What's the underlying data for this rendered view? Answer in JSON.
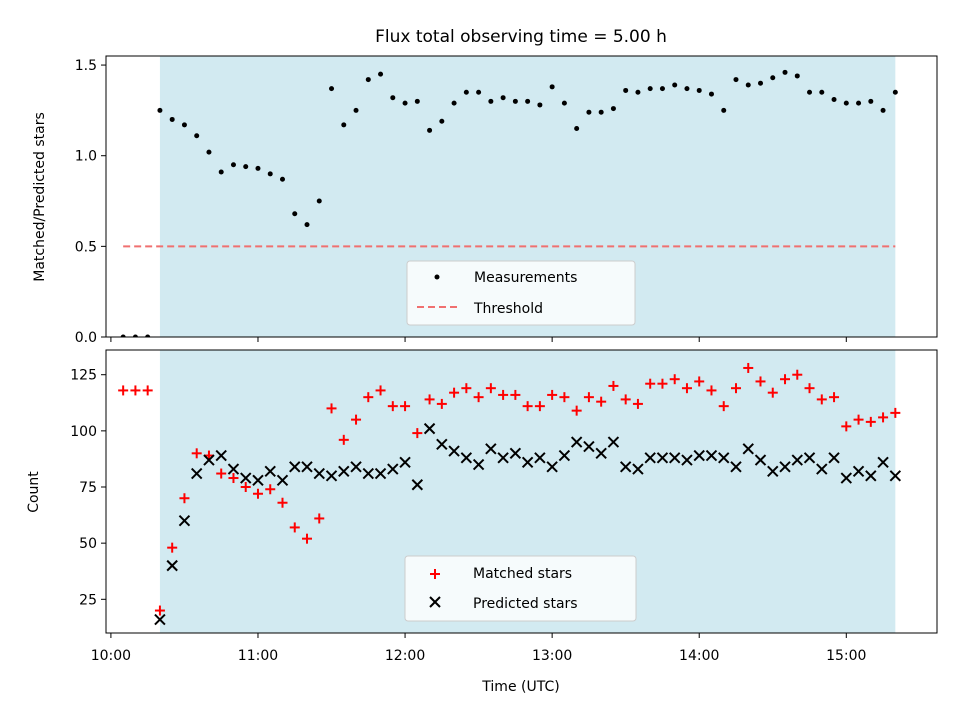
{
  "chart_data": [
    {
      "type": "scatter",
      "title": "Flux total observing time = 5.00 h",
      "ylabel": "Matched/Predicted stars",
      "xlabel": "",
      "xlim": [
        "09:58",
        "15:37"
      ],
      "ylim": [
        0,
        1.55
      ],
      "yticks": [
        0.0,
        0.5,
        1.0,
        1.5
      ],
      "ytick_labels": [
        "0.0",
        "0.5",
        "1.0",
        "1.5"
      ],
      "xticks": [
        "10:00",
        "11:00",
        "12:00",
        "13:00",
        "14:00",
        "15:00"
      ],
      "shaded_region": {
        "from": "10:20",
        "to": "15:20",
        "color": "#add8e6"
      },
      "threshold": {
        "name": "Threshold",
        "y": 0.5,
        "from": "10:05",
        "to": "15:20",
        "color": "#f07070",
        "style": "dashed"
      },
      "legend": {
        "placement": "bottom-center",
        "entries": [
          "Measurements",
          "Threshold"
        ]
      },
      "series": [
        {
          "name": "Measurements",
          "marker": "dot",
          "color": "#000000",
          "x": [
            "10:05",
            "10:10",
            "10:15",
            "10:20",
            "10:25",
            "10:30",
            "10:35",
            "10:40",
            "10:45",
            "10:50",
            "10:55",
            "11:00",
            "11:05",
            "11:10",
            "11:15",
            "11:20",
            "11:25",
            "11:30",
            "11:35",
            "11:40",
            "11:45",
            "11:50",
            "11:55",
            "12:00",
            "12:05",
            "12:10",
            "12:15",
            "12:20",
            "12:25",
            "12:30",
            "12:35",
            "12:40",
            "12:45",
            "12:50",
            "12:55",
            "13:00",
            "13:05",
            "13:10",
            "13:15",
            "13:20",
            "13:25",
            "13:30",
            "13:35",
            "13:40",
            "13:45",
            "13:50",
            "13:55",
            "14:00",
            "14:05",
            "14:10",
            "14:15",
            "14:20",
            "14:25",
            "14:30",
            "14:35",
            "14:40",
            "14:45",
            "14:50",
            "14:55",
            "15:00",
            "15:05",
            "15:10",
            "15:15",
            "15:20"
          ],
          "y": [
            0.0,
            0.0,
            0.0,
            1.25,
            1.2,
            1.17,
            1.11,
            1.02,
            0.91,
            0.95,
            0.94,
            0.93,
            0.9,
            0.87,
            0.68,
            0.62,
            0.75,
            1.37,
            1.17,
            1.25,
            1.42,
            1.45,
            1.32,
            1.29,
            1.3,
            1.14,
            1.19,
            1.29,
            1.35,
            1.35,
            1.3,
            1.32,
            1.3,
            1.3,
            1.28,
            1.38,
            1.29,
            1.15,
            1.24,
            1.24,
            1.26,
            1.36,
            1.35,
            1.37,
            1.37,
            1.39,
            1.37,
            1.36,
            1.34,
            1.25,
            1.42,
            1.39,
            1.4,
            1.43,
            1.46,
            1.44,
            1.35,
            1.35,
            1.31,
            1.29,
            1.29,
            1.3,
            1.25,
            1.35
          ]
        }
      ]
    },
    {
      "type": "scatter",
      "title": "",
      "ylabel": "Count",
      "xlabel": "Time (UTC)",
      "xlim": [
        "09:58",
        "15:37"
      ],
      "ylim": [
        10,
        136
      ],
      "yticks": [
        25,
        50,
        75,
        100,
        125
      ],
      "ytick_labels": [
        "25",
        "50",
        "75",
        "100",
        "125"
      ],
      "xticks": [
        "10:00",
        "11:00",
        "12:00",
        "13:00",
        "14:00",
        "15:00"
      ],
      "xtick_labels": [
        "10:00",
        "11:00",
        "12:00",
        "13:00",
        "14:00",
        "15:00"
      ],
      "shaded_region": {
        "from": "10:20",
        "to": "15:20",
        "color": "#add8e6"
      },
      "legend": {
        "placement": "bottom-center",
        "entries": [
          "Matched stars",
          "Predicted stars"
        ]
      },
      "series": [
        {
          "name": "Matched stars",
          "marker": "plus",
          "color": "#ff0000",
          "x": [
            "10:05",
            "10:10",
            "10:15",
            "10:20",
            "10:25",
            "10:30",
            "10:35",
            "10:40",
            "10:45",
            "10:50",
            "10:55",
            "11:00",
            "11:05",
            "11:10",
            "11:15",
            "11:20",
            "11:25",
            "11:30",
            "11:35",
            "11:40",
            "11:45",
            "11:50",
            "11:55",
            "12:00",
            "12:05",
            "12:10",
            "12:15",
            "12:20",
            "12:25",
            "12:30",
            "12:35",
            "12:40",
            "12:45",
            "12:50",
            "12:55",
            "13:00",
            "13:05",
            "13:10",
            "13:15",
            "13:20",
            "13:25",
            "13:30",
            "13:35",
            "13:40",
            "13:45",
            "13:50",
            "13:55",
            "14:00",
            "14:05",
            "14:10",
            "14:15",
            "14:20",
            "14:25",
            "14:30",
            "14:35",
            "14:40",
            "14:45",
            "14:50",
            "14:55",
            "15:00",
            "15:05",
            "15:10",
            "15:15",
            "15:20"
          ],
          "y": [
            118,
            118,
            118,
            20,
            48,
            70,
            90,
            89,
            81,
            79,
            75,
            72,
            74,
            68,
            57,
            52,
            61,
            110,
            96,
            105,
            115,
            118,
            111,
            111,
            99,
            114,
            112,
            117,
            119,
            115,
            119,
            116,
            116,
            111,
            111,
            116,
            115,
            109,
            115,
            113,
            120,
            114,
            112,
            121,
            121,
            123,
            119,
            122,
            118,
            111,
            119,
            128,
            122,
            117,
            123,
            125,
            119,
            114,
            115,
            102,
            105,
            104,
            106,
            108
          ]
        },
        {
          "name": "Predicted stars",
          "marker": "x",
          "color": "#000000",
          "x": [
            "10:20",
            "10:25",
            "10:30",
            "10:35",
            "10:40",
            "10:45",
            "10:50",
            "10:55",
            "11:00",
            "11:05",
            "11:10",
            "11:15",
            "11:20",
            "11:25",
            "11:30",
            "11:35",
            "11:40",
            "11:45",
            "11:50",
            "11:55",
            "12:00",
            "12:05",
            "12:10",
            "12:15",
            "12:20",
            "12:25",
            "12:30",
            "12:35",
            "12:40",
            "12:45",
            "12:50",
            "12:55",
            "13:00",
            "13:05",
            "13:10",
            "13:15",
            "13:20",
            "13:25",
            "13:30",
            "13:35",
            "13:40",
            "13:45",
            "13:50",
            "13:55",
            "14:00",
            "14:05",
            "14:10",
            "14:15",
            "14:20",
            "14:25",
            "14:30",
            "14:35",
            "14:40",
            "14:45",
            "14:50",
            "14:55",
            "15:00",
            "15:05",
            "15:10",
            "15:15",
            "15:20"
          ],
          "y": [
            16,
            40,
            60,
            81,
            87,
            89,
            83,
            79,
            78,
            82,
            78,
            84,
            84,
            81,
            80,
            82,
            84,
            81,
            81,
            83,
            86,
            76,
            101,
            94,
            91,
            88,
            85,
            92,
            88,
            90,
            86,
            88,
            84,
            89,
            95,
            93,
            90,
            95,
            84,
            83,
            88,
            88,
            88,
            87,
            89,
            89,
            88,
            84,
            92,
            87,
            82,
            84,
            87,
            88,
            83,
            88,
            79,
            82,
            80,
            86,
            80
          ]
        }
      ]
    }
  ]
}
